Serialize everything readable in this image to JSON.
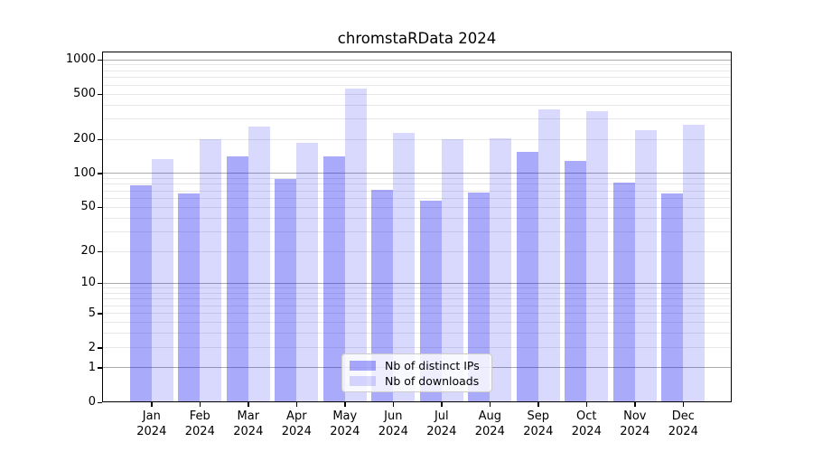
{
  "page": {
    "background": "#ffffff"
  },
  "chart_data": {
    "type": "bar",
    "title": "chromstaRData 2024",
    "categories": [
      "Jan",
      "Feb",
      "Mar",
      "Apr",
      "May",
      "Jun",
      "Jul",
      "Aug",
      "Sep",
      "Oct",
      "Nov",
      "Dec"
    ],
    "category_year": "2024",
    "series": [
      {
        "name": "Nb of distinct IPs",
        "approx_hex": "#aaaaf8",
        "fill": "rgba(20,20,240,0.36)",
        "values": [
          78,
          66,
          142,
          90,
          142,
          71,
          57,
          68,
          155,
          130,
          83,
          66
        ]
      },
      {
        "name": "Nb of downloads",
        "approx_hex": "#dcdcfb",
        "fill": "rgba(20,20,240,0.16)",
        "values": [
          133,
          200,
          257,
          186,
          560,
          227,
          200,
          203,
          365,
          352,
          242,
          268
        ]
      }
    ],
    "y_axis": {
      "scale": "log1p",
      "range": [
        0,
        1000
      ],
      "tick_values": [
        0,
        1,
        2,
        5,
        10,
        20,
        50,
        100,
        200,
        500,
        1000
      ],
      "major_grid_values": [
        1,
        10,
        100,
        1000
      ],
      "minor_grid_multipliers": [
        2,
        3,
        4,
        5,
        6,
        7,
        8,
        9
      ],
      "grid": true
    },
    "x_axis": {
      "label_lines": 2
    },
    "legend": {
      "position": "lower center",
      "items": [
        "Nb of distinct IPs",
        "Nb of downloads"
      ]
    },
    "colors": {
      "axis": "#000000",
      "major_grid": "#ababab",
      "minor_grid": "#e7e7e7",
      "legend_border": "#cccccc",
      "background": "#ffffff"
    }
  }
}
